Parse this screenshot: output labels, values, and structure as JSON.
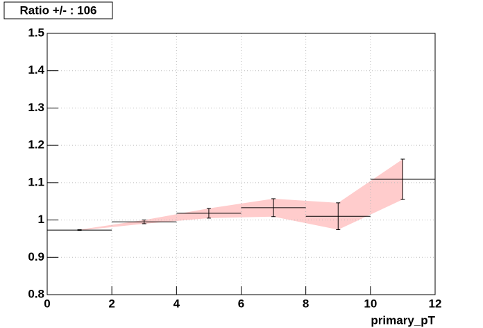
{
  "chart_data": {
    "type": "errorband",
    "title": "Ratio +/- : 106",
    "x_label": "primary_pT",
    "x": [
      1,
      3,
      5,
      7,
      9,
      11
    ],
    "xerr": [
      1,
      1,
      1,
      1,
      1,
      1
    ],
    "series": [
      {
        "color": "#ffcccc",
        "values": [
          0.973,
          0.995,
          1.018,
          1.033,
          1.01,
          1.109
        ],
        "errors": [
          0.001,
          0.005,
          0.013,
          0.024,
          0.036,
          0.054
        ]
      }
    ],
    "xlim": [
      0,
      12
    ],
    "xticks": [
      0,
      2,
      4,
      6,
      8,
      10,
      12
    ],
    "ylim": [
      0.8,
      1.5
    ],
    "yticks": [
      0.8,
      0.9,
      1,
      1.1,
      1.2,
      1.3,
      1.4,
      1.5
    ],
    "grid": true
  }
}
